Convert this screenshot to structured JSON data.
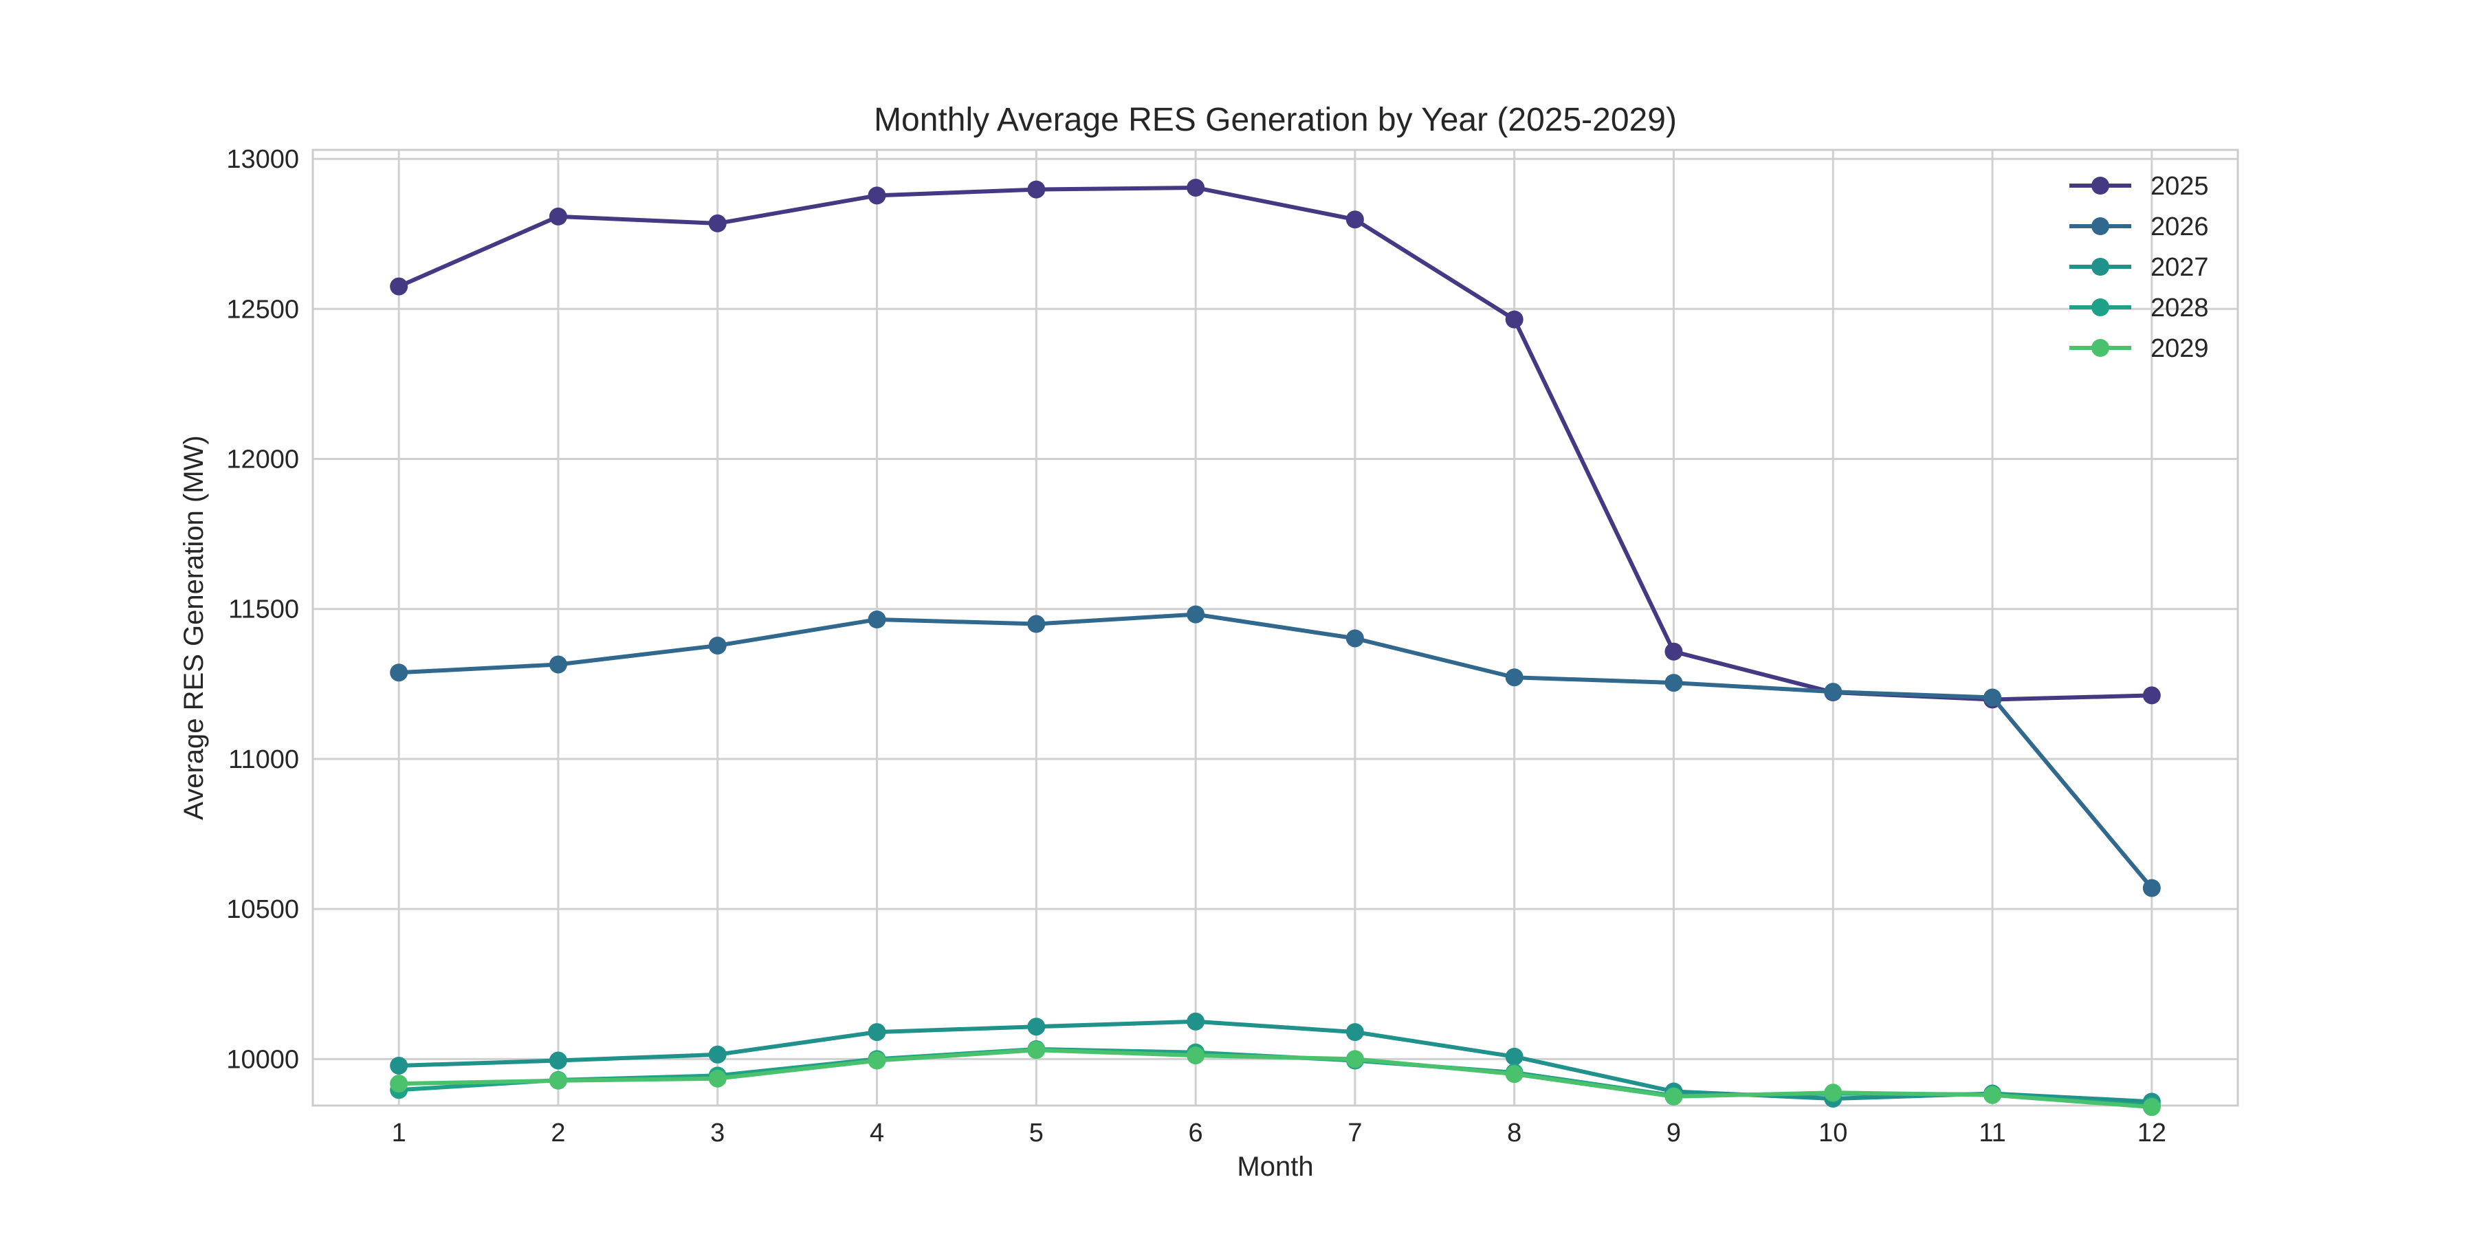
{
  "chart_data": {
    "type": "line",
    "title": "Monthly Average RES Generation by Year (2025-2029)",
    "xlabel": "Month",
    "ylabel": "Average RES Generation (MW)",
    "x": [
      1,
      2,
      3,
      4,
      5,
      6,
      7,
      8,
      9,
      10,
      11,
      12
    ],
    "xlim": [
      0.46,
      12.54
    ],
    "ylim": [
      9845,
      13030
    ],
    "yticks": [
      10000,
      10500,
      11000,
      11500,
      12000,
      12500,
      13000
    ],
    "grid": true,
    "legend_position": "top-right",
    "series": [
      {
        "name": "2025",
        "color": "#443983",
        "values": [
          12575,
          12808,
          12785,
          12878,
          12898,
          12904,
          12798,
          12465,
          11358,
          11222,
          11198,
          11212
        ]
      },
      {
        "name": "2026",
        "color": "#31688e",
        "values": [
          11288,
          11315,
          11378,
          11465,
          11450,
          11482,
          11402,
          11272,
          11254,
          11224,
          11205,
          10570
        ]
      },
      {
        "name": "2027",
        "color": "#21918c",
        "values": [
          9978,
          9995,
          10015,
          10090,
          10108,
          10125,
          10090,
          10008,
          9892,
          9868,
          9885,
          9858
        ]
      },
      {
        "name": "2028",
        "color": "#1fa187",
        "values": [
          9897,
          9930,
          9945,
          10000,
          10033,
          10022,
          9995,
          9955,
          9878,
          9885,
          9882,
          9845
        ]
      },
      {
        "name": "2029",
        "color": "#4ac16d",
        "values": [
          9918,
          9928,
          9935,
          9995,
          10030,
          10012,
          10000,
          9950,
          9875,
          9888,
          9880,
          9840
        ]
      }
    ]
  }
}
